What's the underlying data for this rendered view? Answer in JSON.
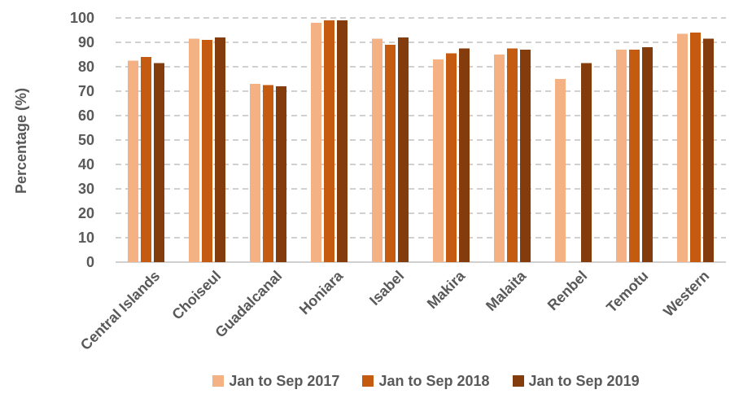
{
  "chart_data": {
    "type": "bar",
    "title": "",
    "xlabel": "",
    "ylabel": "Percentage (%)",
    "ylim": [
      0,
      100
    ],
    "yticks": [
      0,
      10,
      20,
      30,
      40,
      50,
      60,
      70,
      80,
      90,
      100
    ],
    "grid": true,
    "legend_position": "bottom",
    "categories": [
      "Central Islands",
      "Choiseul",
      "Guadalcanal",
      "Honiara",
      "Isabel",
      "Makira",
      "Malaita",
      "Renbel",
      "Temotu",
      "Western"
    ],
    "series": [
      {
        "name": "Jan to Sep 2017",
        "color": "#F4B183",
        "values": [
          82.5,
          91.5,
          73,
          98,
          91.5,
          83,
          85,
          75,
          87,
          93.5
        ]
      },
      {
        "name": "Jan to Sep 2018",
        "color": "#C55A11",
        "values": [
          84,
          91,
          72.5,
          99,
          89,
          85.5,
          87.5,
          null,
          87,
          94
        ]
      },
      {
        "name": "Jan to Sep 2019",
        "color": "#843C0C",
        "values": [
          81.5,
          92,
          72,
          99,
          92,
          87.5,
          87,
          81.5,
          88,
          91.5
        ]
      }
    ]
  }
}
